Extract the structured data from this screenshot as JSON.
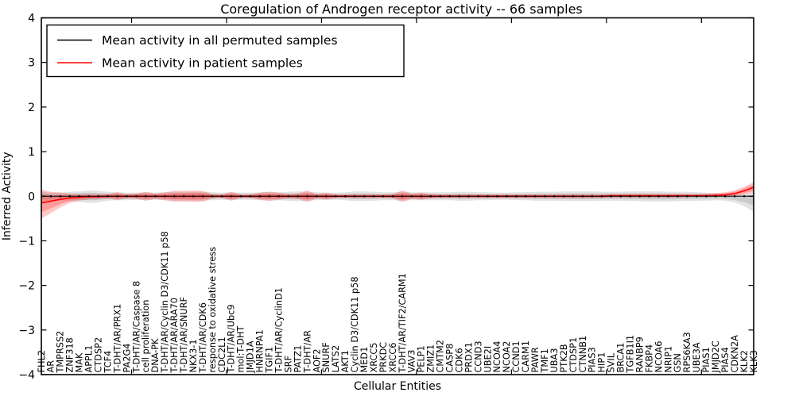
{
  "chart_data": {
    "type": "line",
    "title": "Coregulation of Androgen receptor activity -- 66 samples",
    "xlabel": "Cellular Entities",
    "ylabel": "Inferred Activity",
    "ylim": [
      -4,
      4
    ],
    "yticks": [
      4,
      3,
      2,
      1,
      0,
      -1,
      -2,
      -3,
      -4
    ],
    "grid": false,
    "legend_position": "upper left",
    "legend": [
      {
        "label": "Mean activity in all permuted samples",
        "color": "#000000"
      },
      {
        "label": "Mean activity in patient samples",
        "color": "#ff0000"
      }
    ],
    "categories": [
      "FHL2",
      "AR",
      "TMPRSS2",
      "ZNF318",
      "MAK",
      "APPL1",
      "CTDSP2",
      "TCF4",
      "T-DHT/AR/PRX1",
      "PA2G4",
      "T-DHT/AR/Caspase 8",
      "cell proliferation",
      "DNA-PK",
      "T-DHT/AR/Cyclin D3/CDK11 p58",
      "T-DHT/AR/ARA70",
      "T-DHT/AR/SNURF",
      "NKX3-1",
      "T-DHT/AR/CDK6",
      "response to oxidative stress",
      "CDC2L1",
      "T-DHT/AR/Ubc9",
      "mol:T-DHT",
      "JMJD1A",
      "HNRNPA1",
      "TGIF1",
      "T-DHT/AR/CyclinD1",
      "SRF",
      "PATZ1",
      "T-DHT/AR",
      "AOF2",
      "SNURF",
      "LATS2",
      "AKT1",
      "Cyclin D3/CDK11 p58",
      "MED1",
      "XRCC5",
      "PRKDC",
      "XRCC6",
      "T-DHT/AR/TIF2/CARM1",
      "VAV3",
      "PELP1",
      "ZMIZ1",
      "CMTM2",
      "CASP8",
      "CDK6",
      "PRDX1",
      "CCND3",
      "UBE2I",
      "NCOA4",
      "NCOA2",
      "CCND1",
      "CARM1",
      "PAWR",
      "TMF1",
      "UBA3",
      "PTK2B",
      "CTDSP1",
      "CTNNB1",
      "PIAS3",
      "HIP1",
      "SVIL",
      "BRCA1",
      "TGFB1I1",
      "RANBP9",
      "FKBP4",
      "NCOA6",
      "NRIP1",
      "GSN",
      "RPS6KA3",
      "UBE3A",
      "PIAS1",
      "JMJD2C",
      "PIAS4",
      "CDKN2A",
      "KLK2",
      "KLK3"
    ],
    "series": [
      {
        "name": "Mean activity in all permuted samples",
        "color": "#000000",
        "marker": "dot",
        "values": [
          0,
          0,
          0,
          0,
          0,
          0,
          0,
          0,
          0,
          0,
          0,
          0,
          0,
          0,
          0,
          0,
          0,
          0,
          0,
          0,
          0,
          0,
          0,
          0,
          0,
          0,
          0,
          0,
          0,
          0,
          0,
          0,
          0,
          0,
          0,
          0,
          0,
          0,
          0,
          0,
          0,
          0,
          0,
          0,
          0,
          0,
          0,
          0,
          0,
          0,
          0,
          0,
          0,
          0,
          0,
          0,
          0,
          0,
          0,
          0,
          0,
          0,
          0,
          0,
          0,
          0,
          0,
          0,
          0,
          0,
          0,
          0,
          0,
          0,
          0,
          0
        ]
      },
      {
        "name": "Mean activity in patient samples",
        "color": "#ff0000",
        "marker": "none",
        "values": [
          -0.15,
          -0.11,
          -0.07,
          -0.04,
          -0.02,
          -0.01,
          -0.01,
          0,
          0,
          0,
          0,
          0,
          0,
          0,
          0,
          0,
          0,
          0,
          0,
          0,
          0,
          0,
          0,
          0,
          0,
          0,
          0,
          0,
          0,
          0,
          0,
          0,
          0,
          0,
          0,
          0,
          0,
          0,
          0,
          0,
          0,
          0,
          0,
          0,
          0,
          0,
          0,
          0,
          0,
          0,
          0,
          0,
          0,
          0,
          0,
          0,
          0,
          0,
          0,
          0,
          0.01,
          0.01,
          0.01,
          0.01,
          0.01,
          0.01,
          0.01,
          0.01,
          0.01,
          0.01,
          0.01,
          0.02,
          0.03,
          0.06,
          0.12,
          0.2
        ]
      }
    ],
    "bands": [
      {
        "series": "Mean activity in all permuted samples",
        "color": "#000000",
        "alpha": 0.11,
        "upper": [
          0.1,
          0.08,
          0.09,
          0.1,
          0.11,
          0.13,
          0.12,
          0.1,
          0.09,
          0.08,
          0.08,
          0.09,
          0.08,
          0.09,
          0.1,
          0.1,
          0.1,
          0.1,
          0.09,
          0.08,
          0.09,
          0.08,
          0.08,
          0.09,
          0.1,
          0.09,
          0.1,
          0.11,
          0.1,
          0.09,
          0.08,
          0.08,
          0.09,
          0.11,
          0.11,
          0.1,
          0.09,
          0.09,
          0.1,
          0.09,
          0.09,
          0.09,
          0.09,
          0.09,
          0.1,
          0.1,
          0.09,
          0.09,
          0.08,
          0.08,
          0.09,
          0.09,
          0.1,
          0.1,
          0.1,
          0.11,
          0.11,
          0.11,
          0.11,
          0.1,
          0.1,
          0.1,
          0.11,
          0.11,
          0.11,
          0.11,
          0.1,
          0.1,
          0.1,
          0.09,
          0.08,
          0.07,
          0.06,
          0.05,
          0.05,
          0.05
        ],
        "lower": [
          -0.12,
          -0.1,
          -0.09,
          -0.1,
          -0.13,
          -0.15,
          -0.14,
          -0.1,
          -0.09,
          -0.09,
          -0.08,
          -0.09,
          -0.08,
          -0.09,
          -0.1,
          -0.1,
          -0.1,
          -0.1,
          -0.09,
          -0.08,
          -0.09,
          -0.08,
          -0.08,
          -0.09,
          -0.1,
          -0.09,
          -0.1,
          -0.11,
          -0.1,
          -0.09,
          -0.08,
          -0.08,
          -0.09,
          -0.11,
          -0.11,
          -0.1,
          -0.09,
          -0.09,
          -0.1,
          -0.09,
          -0.09,
          -0.09,
          -0.09,
          -0.09,
          -0.1,
          -0.1,
          -0.09,
          -0.09,
          -0.08,
          -0.08,
          -0.09,
          -0.09,
          -0.1,
          -0.1,
          -0.1,
          -0.11,
          -0.11,
          -0.11,
          -0.11,
          -0.1,
          -0.1,
          -0.1,
          -0.11,
          -0.11,
          -0.12,
          -0.12,
          -0.12,
          -0.11,
          -0.11,
          -0.1,
          -0.1,
          -0.09,
          -0.1,
          -0.14,
          -0.22,
          -0.35
        ]
      },
      {
        "series": "Mean activity in patient samples",
        "color": "#ff0000",
        "alpha": 0.22,
        "upper": [
          0.15,
          0.1,
          0.08,
          0.06,
          0.05,
          0.05,
          0.05,
          0.05,
          0.09,
          0.05,
          0.06,
          0.1,
          0.06,
          0.09,
          0.12,
          0.12,
          0.13,
          0.12,
          0.05,
          0.04,
          0.1,
          0.04,
          0.04,
          0.08,
          0.1,
          0.08,
          0.05,
          0.06,
          0.13,
          0.05,
          0.08,
          0.04,
          0.04,
          0.04,
          0.04,
          0.04,
          0.04,
          0.05,
          0.13,
          0.06,
          0.08,
          0.05,
          0.04,
          0.04,
          0.04,
          0.04,
          0.04,
          0.04,
          0.04,
          0.04,
          0.04,
          0.04,
          0.04,
          0.04,
          0.04,
          0.04,
          0.04,
          0.04,
          0.04,
          0.04,
          0.05,
          0.05,
          0.05,
          0.05,
          0.05,
          0.05,
          0.05,
          0.05,
          0.05,
          0.05,
          0.06,
          0.07,
          0.09,
          0.13,
          0.21,
          0.32
        ],
        "lower": [
          -0.5,
          -0.38,
          -0.25,
          -0.15,
          -0.1,
          -0.07,
          -0.06,
          -0.05,
          -0.09,
          -0.05,
          -0.06,
          -0.1,
          -0.06,
          -0.09,
          -0.12,
          -0.12,
          -0.13,
          -0.12,
          -0.05,
          -0.04,
          -0.1,
          -0.04,
          -0.04,
          -0.08,
          -0.1,
          -0.08,
          -0.05,
          -0.06,
          -0.13,
          -0.05,
          -0.08,
          -0.04,
          -0.04,
          -0.04,
          -0.04,
          -0.04,
          -0.04,
          -0.05,
          -0.13,
          -0.06,
          -0.08,
          -0.05,
          -0.04,
          -0.04,
          -0.04,
          -0.04,
          -0.04,
          -0.04,
          -0.04,
          -0.04,
          -0.04,
          -0.04,
          -0.04,
          -0.04,
          -0.04,
          -0.04,
          -0.04,
          -0.04,
          -0.04,
          -0.04,
          -0.03,
          -0.03,
          -0.03,
          -0.03,
          -0.03,
          -0.03,
          -0.03,
          -0.03,
          -0.02,
          -0.02,
          -0.02,
          -0.01,
          0.0,
          0.01,
          0.04,
          0.06
        ]
      }
    ]
  }
}
